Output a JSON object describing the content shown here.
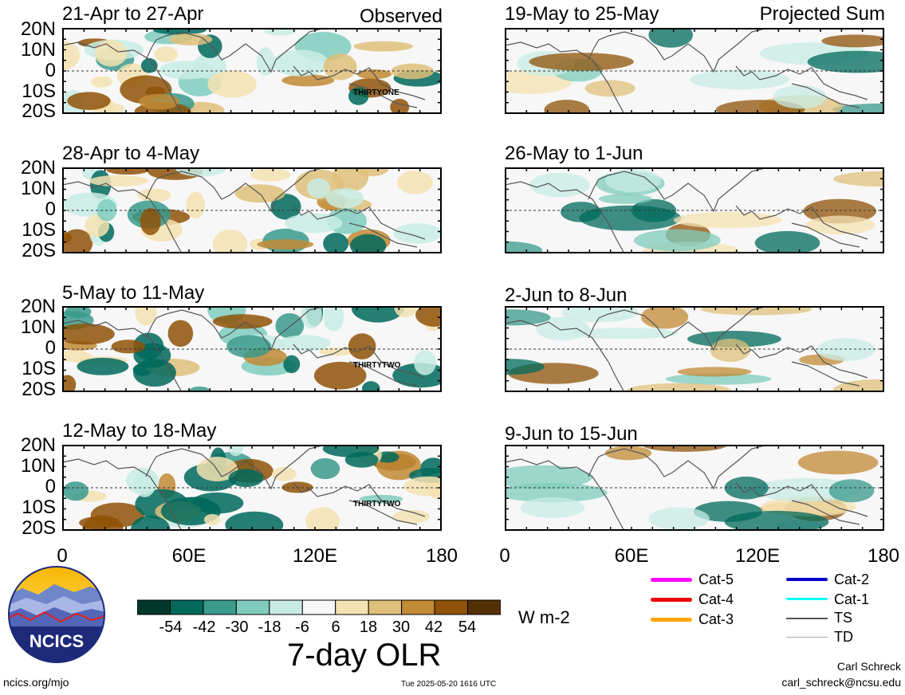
{
  "panels_left": [
    {
      "title": "21-Apr to 27-Apr",
      "label": "Observed",
      "storms": [
        "THIRTYONE"
      ]
    },
    {
      "title": "28-Apr to 4-May",
      "label": "",
      "storms": []
    },
    {
      "title": "5-May to 11-May",
      "label": "",
      "storms": [
        "THIRTYTWO"
      ]
    },
    {
      "title": "12-May to 18-May",
      "label": "",
      "storms": [
        "THIRTYTWO"
      ]
    }
  ],
  "panels_right": [
    {
      "title": "19-May to 25-May",
      "label": "Projected Sum"
    },
    {
      "title": "26-May to 1-Jun",
      "label": ""
    },
    {
      "title": "2-Jun to 8-Jun",
      "label": ""
    },
    {
      "title": "9-Jun to 15-Jun",
      "label": ""
    }
  ],
  "y_ticks": [
    "20N",
    "10N",
    "0",
    "10S",
    "20S"
  ],
  "x_ticks_left": [
    "0",
    "60E",
    "120E",
    "180"
  ],
  "x_ticks_right": [
    "0",
    "60E",
    "120E",
    "180"
  ],
  "colorbar": {
    "levels": [
      "-54",
      "-42",
      "-30",
      "-18",
      "-6",
      "6",
      "18",
      "30",
      "42",
      "54"
    ],
    "colors": [
      "#00392c",
      "#00695c",
      "#3a9a8c",
      "#7fccbe",
      "#c8ece4",
      "#f7f7f7",
      "#f5e2b2",
      "#dfc07a",
      "#c18a35",
      "#8f5208",
      "#543005"
    ],
    "units": "W m-2",
    "title": "7-day OLR"
  },
  "storm_legend": [
    {
      "label": "Cat-5",
      "color": "#ff00ff"
    },
    {
      "label": "Cat-4",
      "color": "#ee0000"
    },
    {
      "label": "Cat-3",
      "color": "#ffa500"
    },
    {
      "label": "Cat-2",
      "color": "#0000cc"
    },
    {
      "label": "Cat-1",
      "color": "#00ffff"
    },
    {
      "label": "TS",
      "color": "#555555"
    },
    {
      "label": "TD",
      "color": "#aaaaaa"
    }
  ],
  "logo_text": "NCICS",
  "footer": {
    "site": "ncics.org/mjo",
    "timestamp": "Tue 2025-05-20 1616 UTC",
    "author": "Carl Schreck",
    "email": "carl_schreck@ncsu.edu"
  }
}
